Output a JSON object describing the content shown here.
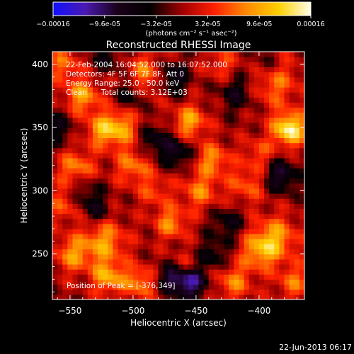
{
  "colorbar": {
    "ticks": [
      "-0.00016",
      "-9.6e-05",
      "-3.2e-05",
      "3.2e-05",
      "9.6e-05",
      "0.00016"
    ],
    "unit_label": "(photons cm⁻² s⁻¹ asec⁻²)",
    "range": [
      -0.00016,
      0.00016
    ],
    "stops": [
      "#1010ff",
      "#4a1ab0",
      "#1a001a",
      "#000000",
      "#a00000",
      "#ff2000",
      "#ff8a00",
      "#ffd000",
      "#ffffe8"
    ]
  },
  "chart_data": {
    "type": "heatmap",
    "title": "Reconstructed RHESSI Image",
    "xlabel": "Heliocentric X (arcsec)",
    "ylabel": "Heliocentric Y (arcsec)",
    "xlim": [
      -564,
      -364
    ],
    "ylim": [
      214,
      410
    ],
    "x_ticks": [
      -550,
      -500,
      -450,
      -400
    ],
    "y_ticks": [
      250,
      300,
      350,
      400
    ],
    "x_tick_labels": [
      "−550",
      "−500",
      "−450",
      "−400"
    ],
    "y_tick_labels": [
      "250",
      "300",
      "350",
      "400"
    ],
    "peak": [
      -376,
      349
    ],
    "annotations": {
      "time_range": "22-Feb-2004 16:04:52.000  to 16:07:52.000",
      "detectors": "Detectors: 4F 5F 6F 7F 8F, Att 0",
      "energy": "Energy Range: 25.0 - 50.0 keV",
      "method": "Clean      Total counts: 3.12E+03",
      "peak_label": "Position of Peak = [-376,349]"
    }
  },
  "footer": {
    "timestamp": "22-Jun-2013 06:17"
  }
}
